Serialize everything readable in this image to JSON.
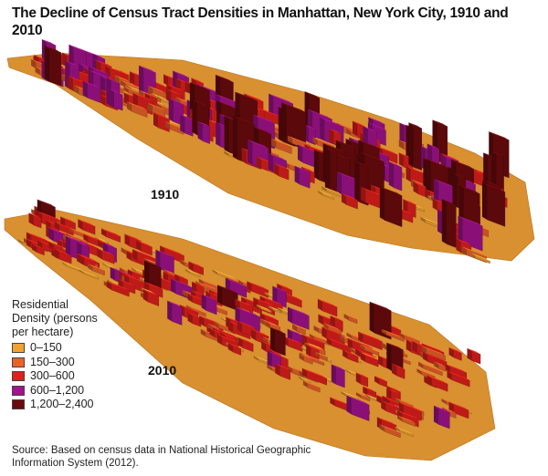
{
  "title": "The Decline of Census Tract Densities in Manhattan, New York City, 1910 and 2010",
  "maps": [
    {
      "label": "1910"
    },
    {
      "label": "2010"
    }
  ],
  "legend": {
    "title": "Residential Density (persons per hectare)",
    "items": [
      {
        "label": "0–150",
        "color": "#f0a332"
      },
      {
        "label": "150–300",
        "color": "#ea6228"
      },
      {
        "label": "300–600",
        "color": "#e0201c"
      },
      {
        "label": "600–1,200",
        "color": "#a2138c"
      },
      {
        "label": "1,200–2,400",
        "color": "#6b0a0d"
      }
    ]
  },
  "source": "Source: Based on census data in National Historical Geographic Information System (2012)."
}
